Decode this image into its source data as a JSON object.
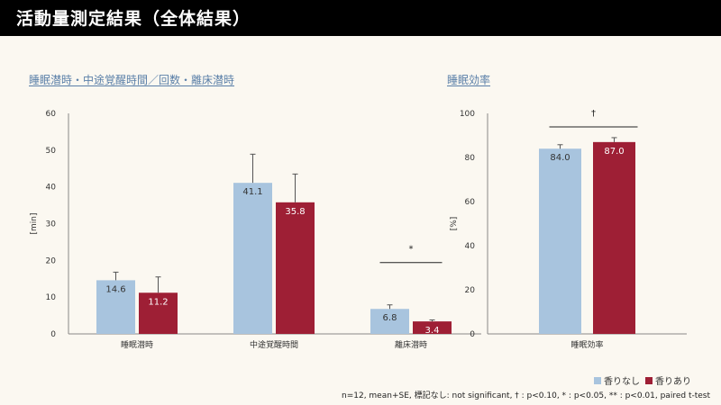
{
  "header": {
    "title": "活動量測定結果（全体結果）"
  },
  "colors": {
    "none": "#a8c4de",
    "with": "#9e1f35",
    "axis": "#888888"
  },
  "legend": {
    "none_label": "香りなし",
    "with_label": "香りあり"
  },
  "footnote": "n=12, mean+SE, 標記なし: not significant, † : p<0.10, * : p<0.05, ** : p<0.01, paired t-test",
  "chart_data": [
    {
      "type": "bar",
      "title": "睡眠潜時・中途覚醒時間／回数・離床潜時",
      "ylabel": "[min]",
      "ylim": [
        0,
        60
      ],
      "yticks": [
        "0",
        "10",
        "20",
        "30",
        "40",
        "50",
        "60"
      ],
      "categories": [
        "睡眠潜時",
        "中途覚醒時間",
        "離床潜時"
      ],
      "series": [
        {
          "name": "香りなし",
          "values": [
            14.6,
            41.1,
            6.8
          ],
          "errors": [
            2.2,
            7.8,
            1.1
          ],
          "labels": [
            "14.6",
            "41.1",
            "6.8"
          ]
        },
        {
          "name": "香りあり",
          "values": [
            11.2,
            35.8,
            3.4
          ],
          "errors": [
            4.3,
            7.7,
            0.4
          ],
          "labels": [
            "11.2",
            "35.8",
            "3.4"
          ]
        }
      ],
      "significance": [
        {
          "category": 2,
          "mark": "*"
        }
      ]
    },
    {
      "type": "bar",
      "title": "睡眠効率",
      "ylabel": "[%]",
      "ylim": [
        0,
        100
      ],
      "yticks": [
        "0",
        "20",
        "40",
        "60",
        "80",
        "100"
      ],
      "categories": [
        "睡眠効率"
      ],
      "series": [
        {
          "name": "香りなし",
          "values": [
            84.0
          ],
          "errors": [
            1.8
          ],
          "labels": [
            "84.0"
          ]
        },
        {
          "name": "香りあり",
          "values": [
            87.0
          ],
          "errors": [
            2.0
          ],
          "labels": [
            "87.0"
          ]
        }
      ],
      "significance": [
        {
          "category": 0,
          "mark": "†"
        }
      ]
    }
  ]
}
